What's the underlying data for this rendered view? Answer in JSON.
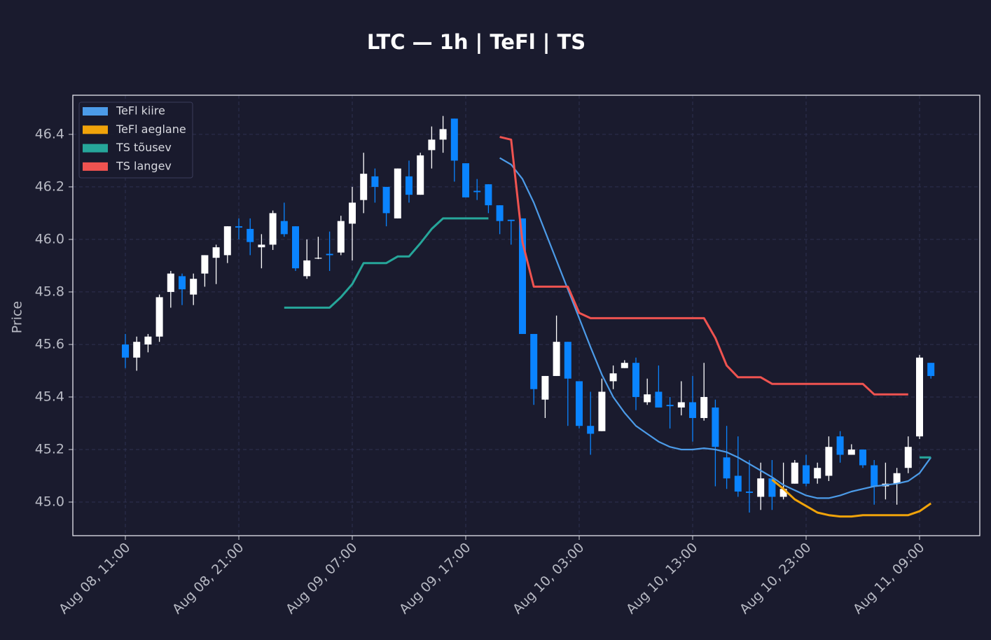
{
  "chart_data": {
    "type": "candlestick",
    "title": "LTC — 1h  |  TeFl  |  TS",
    "y_label": "Price",
    "x": [
      "Aug 08, 11:00",
      "Aug 08, 12:00",
      "Aug 08, 13:00",
      "Aug 08, 14:00",
      "Aug 08, 15:00",
      "Aug 08, 16:00",
      "Aug 08, 17:00",
      "Aug 08, 18:00",
      "Aug 08, 19:00",
      "Aug 08, 20:00",
      "Aug 08, 21:00",
      "Aug 08, 22:00",
      "Aug 08, 23:00",
      "Aug 09, 00:00",
      "Aug 09, 01:00",
      "Aug 09, 02:00",
      "Aug 09, 03:00",
      "Aug 09, 04:00",
      "Aug 09, 05:00",
      "Aug 09, 06:00",
      "Aug 09, 07:00",
      "Aug 09, 08:00",
      "Aug 09, 09:00",
      "Aug 09, 10:00",
      "Aug 09, 11:00",
      "Aug 09, 12:00",
      "Aug 09, 13:00",
      "Aug 09, 14:00",
      "Aug 09, 15:00",
      "Aug 09, 16:00",
      "Aug 09, 17:00",
      "Aug 09, 18:00",
      "Aug 09, 19:00",
      "Aug 09, 20:00",
      "Aug 09, 21:00",
      "Aug 09, 22:00",
      "Aug 09, 23:00",
      "Aug 10, 00:00",
      "Aug 10, 01:00",
      "Aug 10, 02:00",
      "Aug 10, 03:00",
      "Aug 10, 04:00",
      "Aug 10, 05:00",
      "Aug 10, 06:00",
      "Aug 10, 07:00",
      "Aug 10, 08:00",
      "Aug 10, 09:00",
      "Aug 10, 10:00",
      "Aug 10, 11:00",
      "Aug 10, 12:00",
      "Aug 10, 13:00",
      "Aug 10, 14:00",
      "Aug 10, 15:00",
      "Aug 10, 16:00",
      "Aug 10, 17:00",
      "Aug 10, 18:00",
      "Aug 10, 19:00",
      "Aug 10, 20:00",
      "Aug 10, 21:00",
      "Aug 10, 22:00",
      "Aug 10, 23:00",
      "Aug 11, 00:00",
      "Aug 11, 01:00",
      "Aug 11, 02:00",
      "Aug 11, 03:00",
      "Aug 11, 04:00",
      "Aug 11, 05:00",
      "Aug 11, 06:00",
      "Aug 11, 07:00",
      "Aug 11, 08:00",
      "Aug 11, 09:00",
      "Aug 11, 10:00"
    ],
    "open": [
      45.6,
      45.55,
      45.6,
      45.63,
      45.8,
      45.86,
      45.79,
      45.87,
      45.93,
      45.94,
      46.05,
      46.04,
      45.97,
      45.98,
      46.07,
      46.05,
      45.86,
      45.93,
      45.945,
      45.95,
      46.06,
      46.15,
      46.24,
      46.2,
      46.08,
      46.24,
      46.17,
      46.34,
      46.38,
      46.46,
      46.29,
      46.185,
      46.21,
      46.13,
      46.075,
      46.08,
      45.64,
      45.39,
      45.48,
      45.61,
      45.46,
      45.29,
      45.27,
      45.46,
      45.51,
      45.53,
      45.38,
      45.42,
      45.37,
      45.36,
      45.38,
      45.32,
      45.36,
      45.17,
      45.1,
      45.04,
      45.02,
      45.09,
      45.02,
      45.07,
      45.14,
      45.09,
      45.1,
      45.25,
      45.18,
      45.2,
      45.14,
      45.06,
      45.07,
      45.13,
      45.25,
      45.53
    ],
    "high": [
      45.64,
      45.63,
      45.64,
      45.79,
      45.88,
      45.87,
      45.87,
      45.94,
      45.98,
      46.05,
      46.08,
      46.08,
      46.02,
      46.11,
      46.14,
      46.05,
      46.0,
      46.01,
      46.03,
      46.09,
      46.2,
      46.33,
      46.27,
      46.2,
      46.27,
      46.3,
      46.33,
      46.43,
      46.47,
      46.46,
      46.29,
      46.23,
      46.21,
      46.13,
      46.075,
      46.08,
      45.64,
      45.48,
      45.71,
      45.61,
      45.46,
      45.42,
      45.47,
      45.52,
      45.54,
      45.55,
      45.47,
      45.52,
      45.4,
      45.46,
      45.48,
      45.53,
      45.39,
      45.29,
      45.25,
      45.16,
      45.15,
      45.16,
      45.15,
      45.16,
      45.18,
      45.15,
      45.25,
      45.27,
      45.22,
      45.2,
      45.16,
      45.15,
      45.13,
      45.25,
      45.56,
      45.53
    ],
    "low": [
      45.51,
      45.5,
      45.57,
      45.61,
      45.74,
      45.75,
      45.75,
      45.82,
      45.83,
      45.91,
      46.0,
      45.94,
      45.89,
      45.96,
      46.01,
      45.88,
      45.85,
      45.925,
      45.88,
      45.94,
      45.92,
      46.1,
      46.14,
      46.05,
      46.08,
      46.14,
      46.17,
      46.27,
      46.33,
      46.22,
      46.16,
      46.15,
      46.1,
      46.02,
      45.98,
      45.64,
      45.37,
      45.32,
      45.48,
      45.29,
      45.28,
      45.18,
      45.27,
      45.43,
      45.51,
      45.35,
      45.37,
      45.36,
      45.28,
      45.33,
      45.23,
      45.31,
      45.06,
      45.05,
      45.02,
      44.96,
      44.97,
      44.97,
      45.01,
      45.07,
      45.06,
      45.07,
      45.08,
      45.15,
      45.18,
      45.13,
      44.99,
      45.01,
      44.99,
      45.11,
      45.24,
      45.47
    ],
    "close": [
      45.55,
      45.61,
      45.63,
      45.78,
      45.87,
      45.81,
      45.85,
      45.94,
      45.97,
      46.05,
      46.045,
      45.99,
      45.98,
      46.1,
      46.02,
      45.89,
      45.92,
      45.93,
      45.94,
      46.07,
      46.14,
      46.25,
      46.2,
      46.1,
      46.27,
      46.17,
      46.32,
      46.38,
      46.42,
      46.3,
      46.16,
      46.18,
      46.13,
      46.07,
      46.07,
      45.64,
      45.43,
      45.48,
      45.61,
      45.47,
      45.29,
      45.26,
      45.42,
      45.49,
      45.53,
      45.4,
      45.41,
      45.36,
      45.365,
      45.38,
      45.32,
      45.4,
      45.21,
      45.09,
      45.04,
      45.035,
      45.09,
      45.02,
      45.05,
      45.15,
      45.07,
      45.13,
      45.21,
      45.18,
      45.2,
      45.14,
      45.06,
      45.07,
      45.11,
      45.21,
      45.55,
      45.48
    ],
    "up_color": "#ffffff",
    "down_color": "#0a84ff",
    "series": [
      {
        "name": "TeFl kiire",
        "color": "#4c9be8",
        "values": [
          null,
          null,
          null,
          null,
          null,
          null,
          null,
          null,
          null,
          null,
          null,
          null,
          null,
          null,
          null,
          null,
          null,
          null,
          null,
          null,
          null,
          null,
          null,
          null,
          null,
          null,
          null,
          null,
          null,
          null,
          null,
          null,
          null,
          46.31,
          46.285,
          46.23,
          46.14,
          46.03,
          45.92,
          45.81,
          45.7,
          45.59,
          45.485,
          45.4,
          45.34,
          45.29,
          45.26,
          45.23,
          45.21,
          45.2,
          45.2,
          45.205,
          45.2,
          45.19,
          45.17,
          45.145,
          45.12,
          45.095,
          45.065,
          45.045,
          45.025,
          45.015,
          45.015,
          45.025,
          45.04,
          45.05,
          45.06,
          45.065,
          45.07,
          45.08,
          45.11,
          45.17
        ]
      },
      {
        "name": "TeFl aeglane",
        "color": "#f0a30a",
        "values": [
          null,
          null,
          null,
          null,
          null,
          null,
          null,
          null,
          null,
          null,
          null,
          null,
          null,
          null,
          null,
          null,
          null,
          null,
          null,
          null,
          null,
          null,
          null,
          null,
          null,
          null,
          null,
          null,
          null,
          null,
          null,
          null,
          null,
          null,
          null,
          null,
          null,
          null,
          null,
          null,
          null,
          null,
          null,
          null,
          null,
          null,
          null,
          null,
          null,
          null,
          null,
          null,
          null,
          null,
          null,
          null,
          null,
          45.085,
          45.05,
          45.01,
          44.985,
          44.96,
          44.95,
          44.945,
          44.945,
          44.95,
          44.95,
          44.95,
          44.95,
          44.95,
          44.965,
          44.995
        ]
      },
      {
        "name": "TS tõusev",
        "color": "#26a69a",
        "values": [
          null,
          null,
          null,
          null,
          null,
          null,
          null,
          null,
          null,
          null,
          null,
          null,
          null,
          null,
          45.74,
          45.74,
          45.74,
          45.74,
          45.74,
          45.78,
          45.83,
          45.91,
          45.91,
          45.91,
          45.935,
          45.935,
          45.985,
          46.04,
          46.08,
          46.08,
          46.08,
          46.08,
          46.08,
          null,
          null,
          null,
          null,
          null,
          null,
          null,
          null,
          null,
          null,
          null,
          null,
          null,
          null,
          null,
          null,
          null,
          null,
          null,
          null,
          null,
          null,
          null,
          null,
          null,
          null,
          null,
          null,
          null,
          null,
          null,
          null,
          null,
          null,
          null,
          null,
          null,
          45.17,
          45.17
        ]
      },
      {
        "name": "TS langev",
        "color": "#ef5350",
        "values": [
          null,
          null,
          null,
          null,
          null,
          null,
          null,
          null,
          null,
          null,
          null,
          null,
          null,
          null,
          null,
          null,
          null,
          null,
          null,
          null,
          null,
          null,
          null,
          null,
          null,
          null,
          null,
          null,
          null,
          null,
          null,
          null,
          null,
          46.39,
          46.38,
          45.99,
          45.82,
          45.82,
          45.82,
          45.82,
          45.72,
          45.7,
          45.7,
          45.7,
          45.7,
          45.7,
          45.7,
          45.7,
          45.7,
          45.7,
          45.7,
          45.7,
          45.625,
          45.52,
          45.475,
          45.475,
          45.475,
          45.45,
          45.45,
          45.45,
          45.45,
          45.45,
          45.45,
          45.45,
          45.45,
          45.45,
          45.41,
          45.41,
          45.41,
          45.41,
          null,
          null
        ]
      }
    ],
    "ylim": [
      44.872,
      46.549
    ],
    "yticks": [
      {
        "value": 45.0,
        "label": "45.0"
      },
      45.2,
      45.4,
      45.6,
      45.8,
      {
        "value": 46.0,
        "label": "46.0"
      },
      46.2,
      46.4
    ],
    "xticks": [
      "Aug 08, 11:00",
      "Aug 08, 21:00",
      "Aug 09, 07:00",
      "Aug 09, 17:00",
      "Aug 10, 03:00",
      "Aug 10, 13:00",
      "Aug 10, 23:00",
      "Aug 11, 09:00"
    ],
    "grid": true,
    "legend": "upper left"
  }
}
